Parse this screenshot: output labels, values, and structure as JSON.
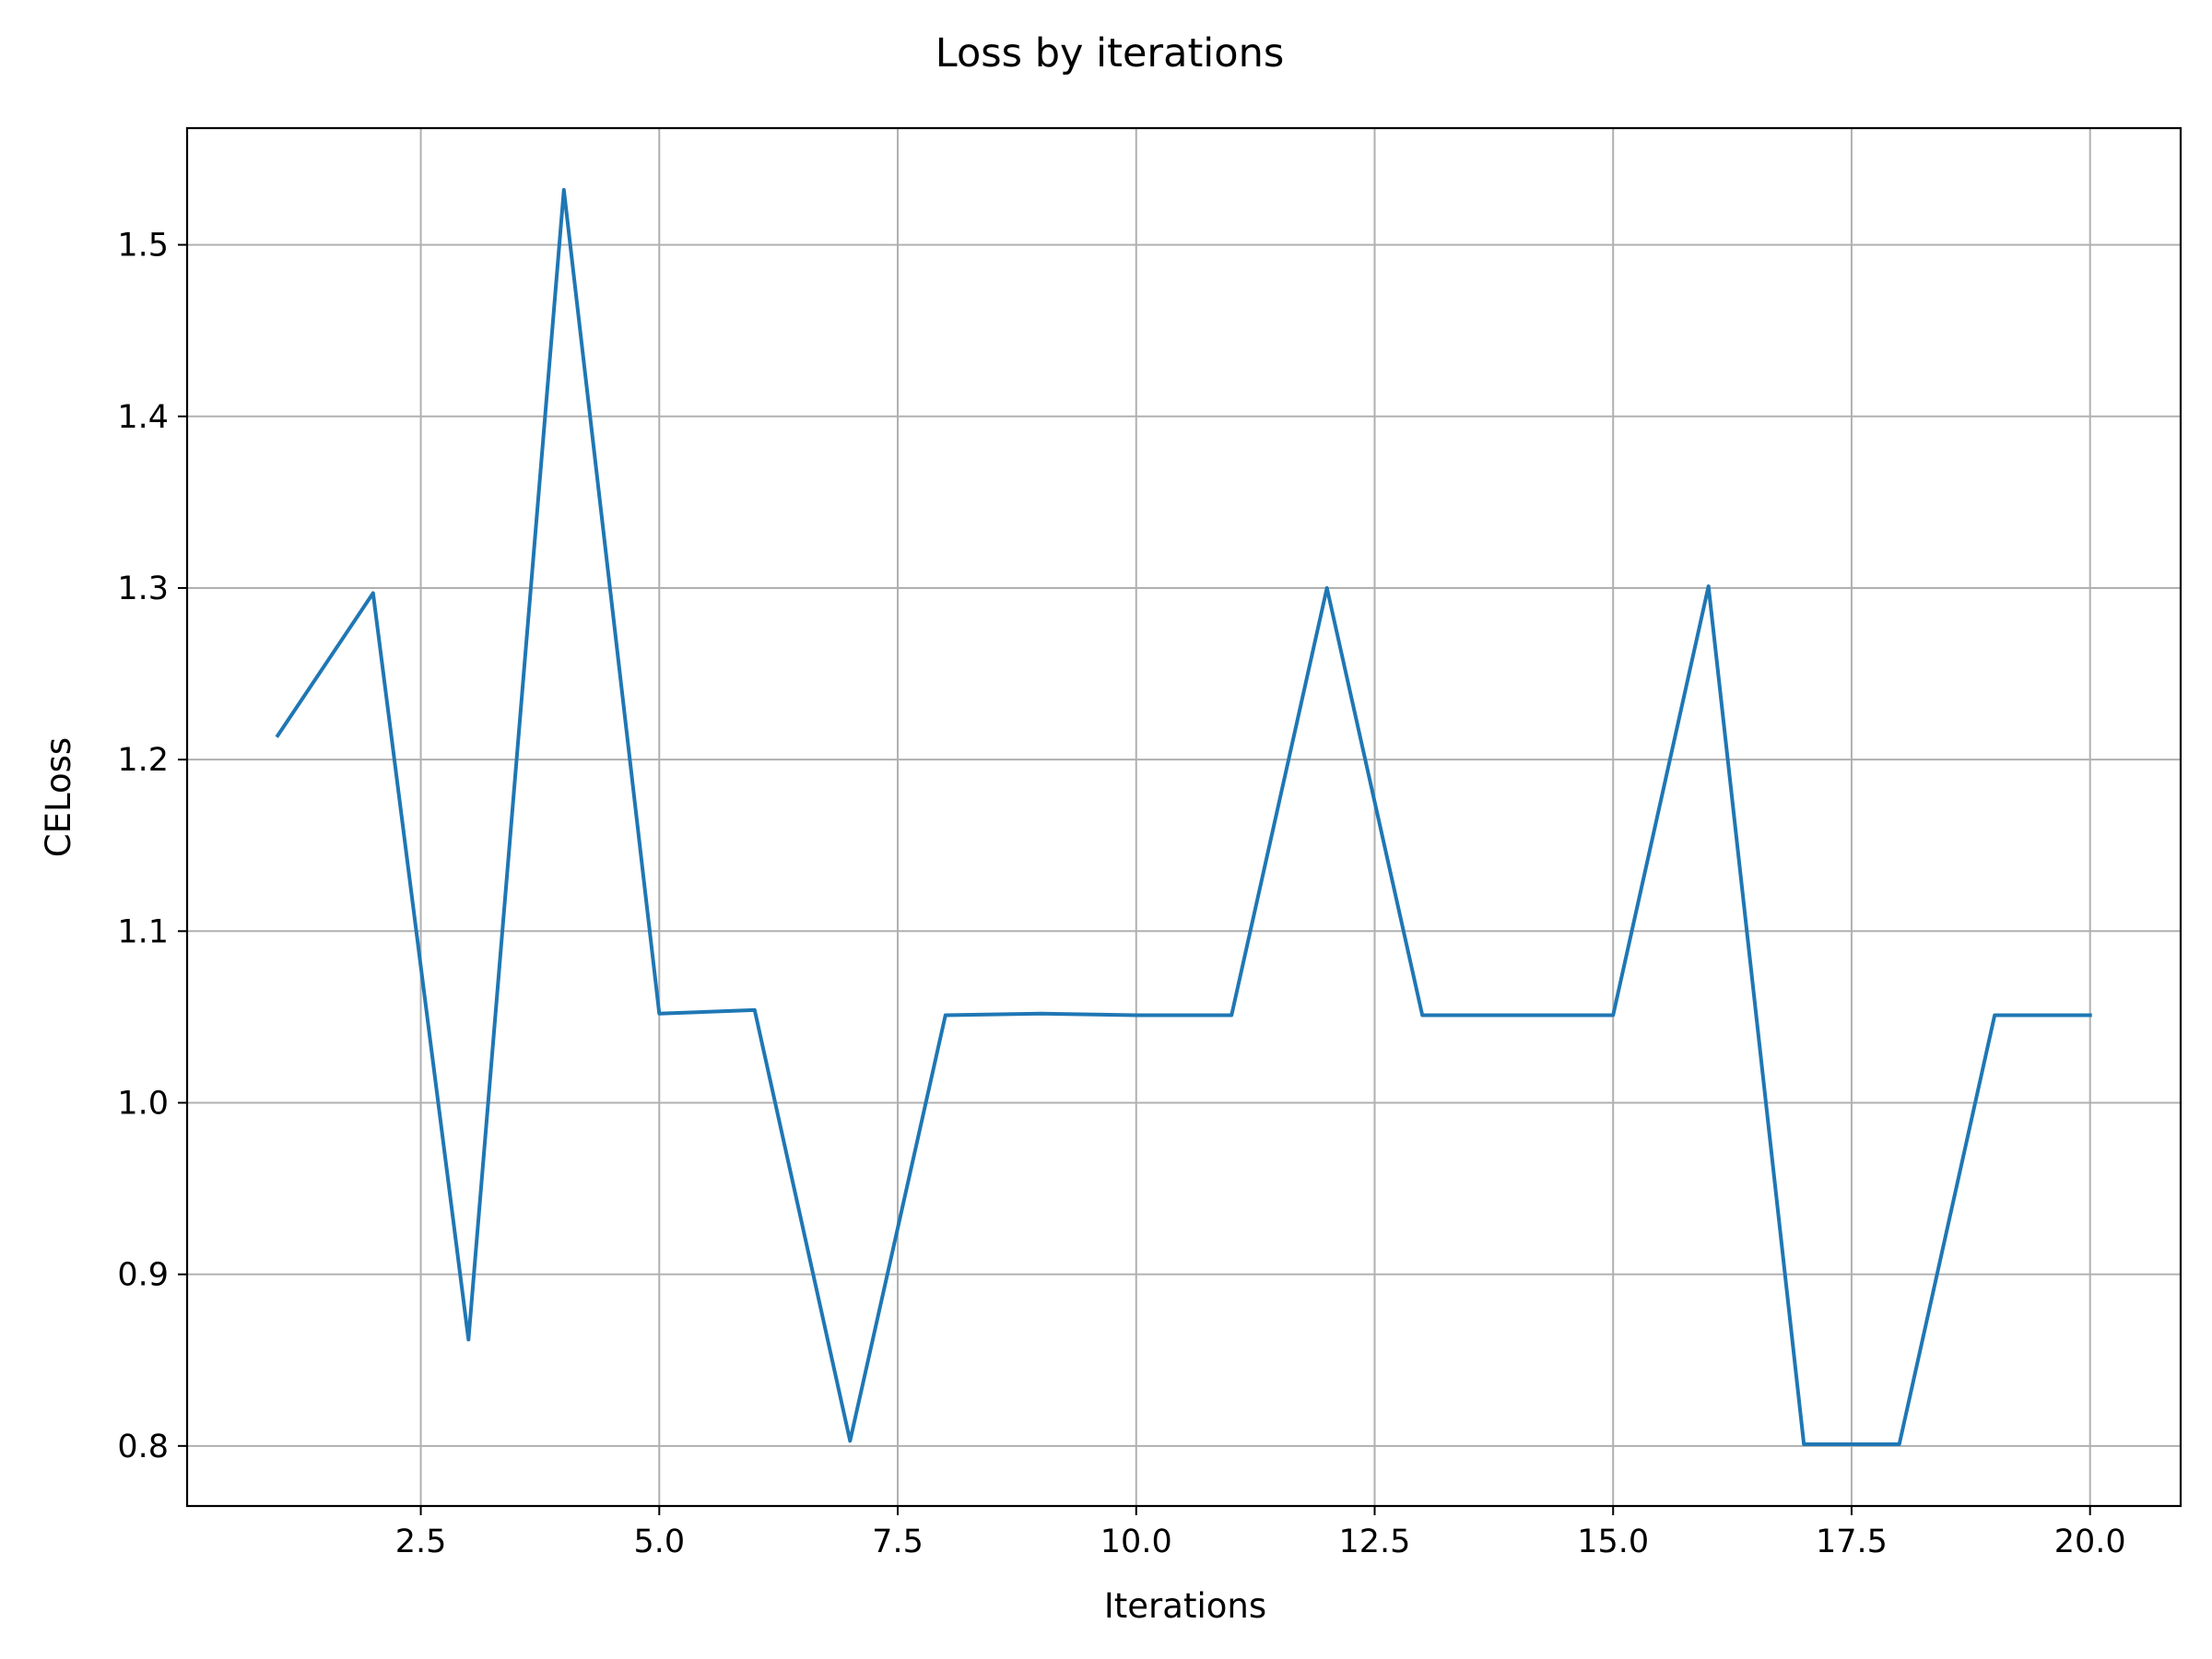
{
  "chart_data": {
    "type": "line",
    "title": "Loss by iterations",
    "xlabel": "Iterations",
    "ylabel": "CELoss",
    "xlim": [
      0.05,
      20.95
    ],
    "ylim": [
      0.765,
      1.568
    ],
    "grid": true,
    "legend": "none",
    "x_ticks": [
      2.5,
      5.0,
      7.5,
      10.0,
      12.5,
      15.0,
      17.5,
      20.0
    ],
    "x_tick_labels": [
      "2.5",
      "5.0",
      "7.5",
      "10.0",
      "12.5",
      "15.0",
      "17.5",
      "20.0"
    ],
    "y_ticks": [
      0.8,
      0.9,
      1.0,
      1.1,
      1.2,
      1.3,
      1.4,
      1.5
    ],
    "y_tick_labels": [
      "0.8",
      "0.9",
      "1.0",
      "1.1",
      "1.2",
      "1.3",
      "1.4",
      "1.5"
    ],
    "series": [
      {
        "color": "#1f77b4",
        "x": [
          1,
          2,
          3,
          4,
          5,
          6,
          7,
          8,
          9,
          10,
          11,
          12,
          13,
          14,
          15,
          16,
          17,
          18,
          19,
          20
        ],
        "y": [
          1.214,
          1.297,
          0.862,
          1.532,
          1.052,
          1.054,
          0.803,
          1.051,
          1.052,
          1.051,
          1.051,
          1.3,
          1.051,
          1.051,
          1.051,
          1.301,
          0.801,
          0.801,
          1.051,
          1.051
        ]
      }
    ]
  }
}
